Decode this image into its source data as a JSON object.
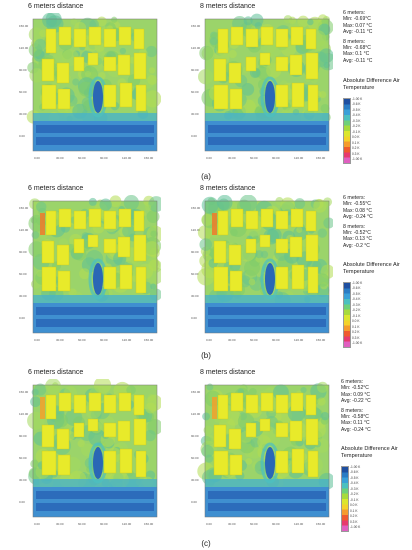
{
  "figure": {
    "legend_title": "Absolute Difference Air Temperature",
    "legend_ticks": [
      "-1.00 K",
      "-0.6 K",
      "-0.5 K",
      "-0.4 K",
      "-0.3 K",
      "-0.2 K",
      "-0.1 K",
      "0.0 K",
      "0.1 K",
      "0.2 K",
      "0.3 K",
      "-1.00 K"
    ],
    "legend_colors": [
      "#1f4fa0",
      "#2b7cc4",
      "#3aa0d8",
      "#4cc0c0",
      "#6fd07a",
      "#a7da3c",
      "#dbe62e",
      "#f3d22a",
      "#f59b2c",
      "#ef5a2e",
      "#e63a6e",
      "#e05fc0"
    ],
    "y_ticks": [
      "150.00",
      "120.00",
      "90.00",
      "60.00",
      "30.00",
      "0.00"
    ],
    "x_ticks": [
      "0.00",
      "30.00",
      "60.00",
      "90.00",
      "120.00",
      "150.00"
    ],
    "panels": [
      {
        "caption": "(a)",
        "left_title": "6 meters distance",
        "right_title": "8 meters distance",
        "stats": [
          {
            "heading": "6 meters:",
            "min": "Min: -0.69°C",
            "max": "Max: 0.07 °C",
            "avg": "Avg: -0.11 °C"
          },
          {
            "heading": "8 meters:",
            "min": "Min: -0.68°C",
            "max": "Max: 0.1 °C",
            "avg": "Avg: -0.11 °C"
          }
        ]
      },
      {
        "caption": "(b)",
        "left_title": "6 meters distance",
        "right_title": "8 meters distance",
        "stats": [
          {
            "heading": "6 meters:",
            "min": "Min: -0.55°C",
            "max": "Max: 0.08 °C",
            "avg": "Avg: -0.24 °C"
          },
          {
            "heading": "8 meters:",
            "min": "Min: -0.52°C",
            "max": "Max: 0.13 °C",
            "avg": "Avg: -0.2 °C"
          }
        ]
      },
      {
        "caption": "(c)",
        "left_title": "6 meters distance",
        "right_title": "8 meters distance",
        "stats": [
          {
            "heading": "6 meters:",
            "min": "Min: -0.52°C",
            "max": "Max: 0.09 °C",
            "avg": "Avg: -0.22 °C"
          },
          {
            "heading": "8 meters:",
            "min": "Min: -0.58°C",
            "max": "Max: 0.11 °C",
            "avg": "Avg: -0.24 °C"
          }
        ]
      }
    ]
  }
}
